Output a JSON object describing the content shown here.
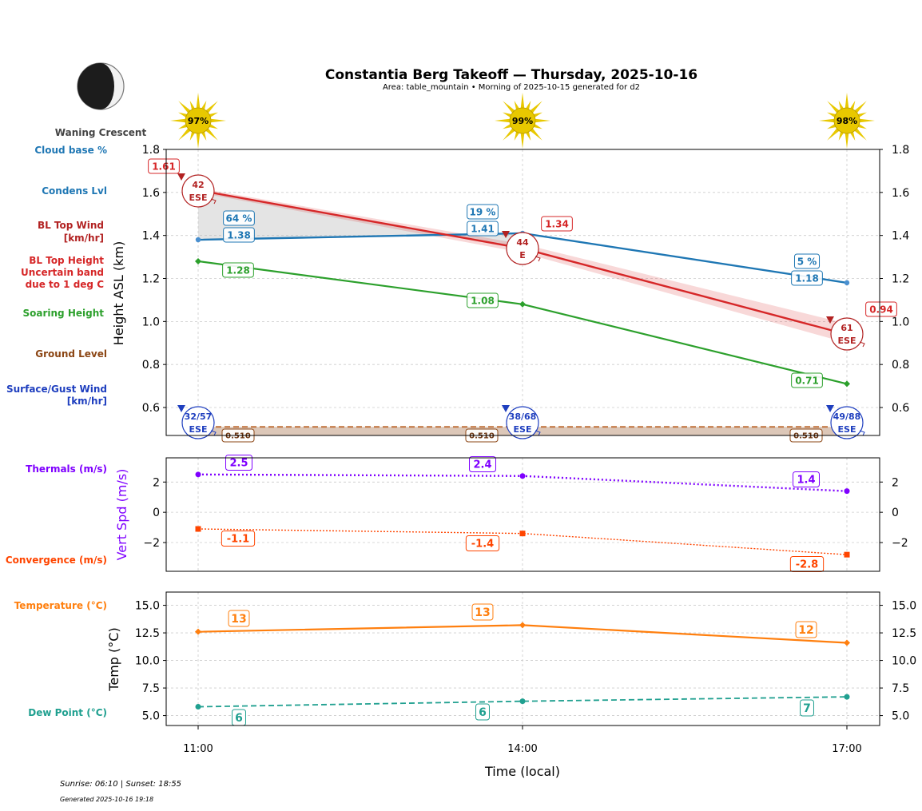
{
  "header": {
    "title": "Constantia Berg Takeoff — Thursday, 2025-10-16",
    "subtitle": "Area: table_mountain • Morning of 2025-10-15 generated for d2",
    "moon_phase": "Waning Crescent"
  },
  "footer": {
    "sun_times": "Sunrise: 06:10 | Sunset: 18:55",
    "generated": "Generated 2025-10-16 19:18"
  },
  "colors": {
    "cloud": "#1f77b4",
    "bl_top": "#d62728",
    "soaring": "#2ca02c",
    "ground": "#8b4513",
    "surface_wind": "#1f3fbf",
    "thermals": "#7f00ff",
    "convergence": "#ff4500",
    "temperature": "#ff7f0e",
    "dewpoint": "#20a090",
    "sun": "#e8c800"
  },
  "left_labels": {
    "cloud_base": "Cloud base %",
    "condens": "Condens Lvl",
    "bl_wind_1": "BL Top Wind",
    "bl_wind_2": "[km/hr]",
    "bl_height_1": "BL Top Height",
    "bl_height_2": "Uncertain band",
    "bl_height_3": "due to 1 deg C",
    "soaring": "Soaring Height",
    "ground": "Ground Level",
    "surface_1": "Surface/Gust Wind",
    "surface_2": "[km/hr]",
    "thermals": "Thermals (m/s)",
    "convergence": "Convergence (m/s)",
    "temperature": "Temperature (°C)",
    "dewpoint": "Dew Point (°C)"
  },
  "chart_data": [
    {
      "type": "line",
      "ylabel": "Height ASL (km)",
      "ylim": [
        0.47,
        1.8
      ],
      "yticks": [
        "0.6",
        "0.8",
        "1.0",
        "1.2",
        "1.4",
        "1.6",
        "1.8"
      ],
      "x": [
        "11:00",
        "14:00",
        "17:00"
      ],
      "sun_percent": [
        "97%",
        "99%",
        "98%"
      ],
      "series": [
        {
          "name": "Condens Lvl",
          "values": [
            1.38,
            1.41,
            1.18
          ],
          "labels": [
            "1.38",
            "1.41",
            "1.18"
          ],
          "cloud_labels": [
            "64 %",
            "19 %",
            "5 %"
          ]
        },
        {
          "name": "BL Top Height",
          "values": [
            1.61,
            1.34,
            0.94
          ],
          "labels": [
            "1.61",
            "1.34",
            "0.94"
          ],
          "band_low": [
            1.6,
            1.32,
            0.9
          ],
          "band_high": [
            1.62,
            1.36,
            0.99
          ]
        },
        {
          "name": "Soaring Height",
          "values": [
            1.28,
            1.08,
            0.71
          ],
          "labels": [
            "1.28",
            "1.08",
            "0.71"
          ]
        },
        {
          "name": "Ground Level",
          "values": [
            0.51,
            0.51,
            0.51
          ],
          "labels": [
            "0.510",
            "0.510",
            "0.510"
          ]
        }
      ],
      "bl_top_wind": [
        {
          "speed": "42",
          "dir": "ESE"
        },
        {
          "speed": "44",
          "dir": "E"
        },
        {
          "speed": "61",
          "dir": "ESE"
        }
      ],
      "surface_wind": [
        {
          "speed": "32/57",
          "dir": "ESE"
        },
        {
          "speed": "38/68",
          "dir": "ESE"
        },
        {
          "speed": "49/88",
          "dir": "ESE"
        }
      ]
    },
    {
      "type": "line",
      "ylabel": "Vert Spd (m/s)",
      "ylim": [
        -3.9,
        3.6
      ],
      "yticks": [
        "−2",
        "0",
        "2"
      ],
      "x": [
        "11:00",
        "14:00",
        "17:00"
      ],
      "series": [
        {
          "name": "Thermals (m/s)",
          "values": [
            2.5,
            2.4,
            1.4
          ],
          "labels": [
            "2.5",
            "2.4",
            "1.4"
          ]
        },
        {
          "name": "Convergence (m/s)",
          "values": [
            -1.1,
            -1.4,
            -2.8
          ],
          "labels": [
            "-1.1",
            "-1.4",
            "-2.8"
          ]
        }
      ]
    },
    {
      "type": "line",
      "xlabel": "Time (local)",
      "ylabel": "Temp (°C)",
      "ylim": [
        4.1,
        16.2
      ],
      "yticks": [
        "5.0",
        "7.5",
        "10.0",
        "12.5",
        "15.0"
      ],
      "x": [
        "11:00",
        "14:00",
        "17:00"
      ],
      "series": [
        {
          "name": "Temperature (°C)",
          "values": [
            12.6,
            13.2,
            11.6
          ],
          "labels": [
            "13",
            "13",
            "12"
          ]
        },
        {
          "name": "Dew Point (°C)",
          "values": [
            5.8,
            6.3,
            6.7
          ],
          "labels": [
            "6",
            "6",
            "7"
          ]
        }
      ]
    }
  ]
}
